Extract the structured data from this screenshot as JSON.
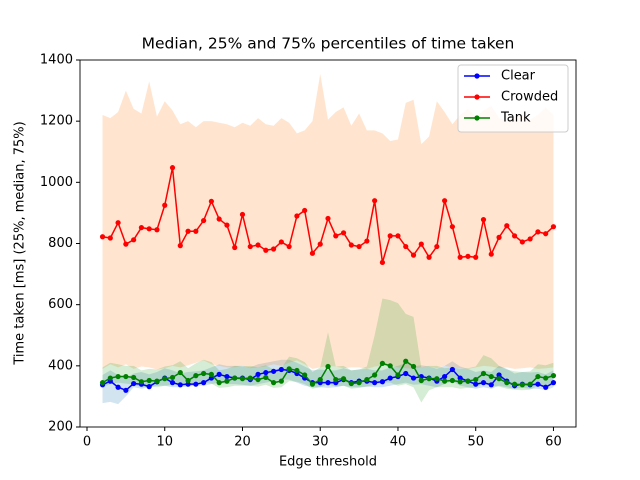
{
  "chart_data": {
    "type": "line",
    "title": "Median, 25% and 75% percentiles of time taken",
    "x_label": "Edge threshold",
    "y_label": "Time taken [ms] (25%, median, 75%)",
    "x": [
      2,
      3,
      4,
      5,
      6,
      7,
      8,
      9,
      10,
      11,
      12,
      13,
      14,
      15,
      16,
      17,
      18,
      19,
      20,
      21,
      22,
      23,
      24,
      25,
      26,
      27,
      28,
      29,
      30,
      31,
      32,
      33,
      34,
      35,
      36,
      37,
      38,
      39,
      40,
      41,
      42,
      43,
      44,
      45,
      46,
      47,
      48,
      49,
      50,
      51,
      52,
      53,
      54,
      55,
      56,
      57,
      58,
      59,
      60
    ],
    "xlim": [
      -0.9,
      62.9
    ],
    "xticks": [
      0,
      10,
      20,
      30,
      40,
      50,
      60
    ],
    "ylim": [
      200,
      1400
    ],
    "yticks": [
      200,
      400,
      600,
      800,
      1000,
      1200,
      1400
    ],
    "legend": "upper right",
    "series": [
      {
        "name": "Clear",
        "color": "#0000ff",
        "band_color": "rgba(31,119,180,0.2)",
        "values": [
          338,
          350,
          330,
          320,
          342,
          340,
          332,
          348,
          360,
          345,
          338,
          340,
          340,
          345,
          360,
          372,
          365,
          360,
          360,
          355,
          372,
          378,
          382,
          388,
          385,
          375,
          360,
          345,
          345,
          345,
          345,
          355,
          345,
          350,
          350,
          345,
          348,
          360,
          365,
          375,
          360,
          365,
          360,
          350,
          365,
          388,
          360,
          350,
          340,
          345,
          338,
          370,
          350,
          335,
          340,
          338,
          340,
          330,
          345
        ],
        "lower": [
          278,
          282,
          275,
          300,
          330,
          325,
          330,
          335,
          335,
          330,
          330,
          332,
          335,
          335,
          340,
          345,
          340,
          340,
          338,
          335,
          340,
          345,
          350,
          355,
          355,
          345,
          335,
          330,
          330,
          328,
          330,
          335,
          330,
          330,
          332,
          330,
          330,
          335,
          340,
          345,
          338,
          340,
          335,
          330,
          340,
          350,
          335,
          330,
          325,
          330,
          325,
          335,
          330,
          325,
          328,
          325,
          325,
          320,
          330
        ],
        "upper": [
          370,
          385,
          370,
          360,
          375,
          380,
          372,
          380,
          392,
          385,
          375,
          380,
          382,
          385,
          395,
          405,
          400,
          400,
          400,
          395,
          405,
          410,
          415,
          420,
          420,
          410,
          398,
          385,
          388,
          385,
          385,
          392,
          385,
          388,
          390,
          385,
          385,
          395,
          400,
          410,
          398,
          402,
          398,
          390,
          400,
          415,
          398,
          390,
          380,
          385,
          380,
          400,
          390,
          375,
          380,
          378,
          380,
          372,
          385
        ]
      },
      {
        "name": "Crowded",
        "color": "#ff0000",
        "band_color": "rgba(255,127,14,0.2)",
        "values": [
          822,
          818,
          868,
          798,
          812,
          852,
          848,
          845,
          925,
          1048,
          793,
          840,
          840,
          875,
          938,
          880,
          860,
          787,
          895,
          790,
          795,
          778,
          782,
          805,
          790,
          890,
          908,
          768,
          798,
          882,
          825,
          835,
          795,
          790,
          808,
          940,
          738,
          825,
          825,
          790,
          762,
          798,
          755,
          790,
          940,
          855,
          755,
          758,
          755,
          878,
          765,
          820,
          858,
          825,
          805,
          815,
          838,
          832,
          855
        ],
        "lower": [
          390,
          405,
          395,
          405,
          390,
          398,
          395,
          388,
          392,
          400,
          395,
          402,
          410,
          418,
          405,
          400,
          395,
          395,
          400,
          392,
          395,
          398,
          405,
          400,
          410,
          418,
          405,
          390,
          395,
          400,
          398,
          392,
          395,
          395,
          390,
          398,
          400,
          402,
          395,
          392,
          390,
          395,
          398,
          392,
          400,
          395,
          392,
          390,
          395,
          400,
          398,
          392,
          395,
          390,
          392,
          395,
          390,
          392,
          395
        ],
        "upper": [
          1220,
          1210,
          1230,
          1300,
          1240,
          1225,
          1330,
          1215,
          1265,
          1235,
          1190,
          1200,
          1180,
          1200,
          1200,
          1195,
          1190,
          1180,
          1195,
          1185,
          1210,
          1190,
          1185,
          1210,
          1195,
          1160,
          1170,
          1200,
          1355,
          1205,
          1230,
          1245,
          1185,
          1225,
          1170,
          1170,
          1160,
          1135,
          1140,
          1260,
          1270,
          1125,
          1150,
          1265,
          1230,
          1190,
          1220,
          1240,
          1215,
          1235,
          1250,
          1210,
          1200,
          1215,
          1220,
          1205,
          1220,
          1245,
          1220
        ]
      },
      {
        "name": "Tank",
        "color": "#008000",
        "band_color": "rgba(44,160,44,0.2)",
        "values": [
          345,
          360,
          365,
          365,
          362,
          348,
          352,
          350,
          358,
          362,
          378,
          352,
          368,
          375,
          372,
          345,
          350,
          360,
          358,
          360,
          355,
          362,
          345,
          350,
          390,
          385,
          370,
          340,
          355,
          398,
          355,
          358,
          342,
          345,
          355,
          370,
          408,
          400,
          370,
          415,
          398,
          352,
          358,
          358,
          350,
          352,
          348,
          350,
          355,
          375,
          365,
          358,
          345,
          340,
          338,
          340,
          365,
          360,
          368
        ],
        "lower": [
          330,
          340,
          345,
          342,
          338,
          330,
          332,
          330,
          335,
          338,
          345,
          332,
          340,
          345,
          342,
          328,
          330,
          335,
          335,
          335,
          332,
          338,
          328,
          330,
          350,
          348,
          340,
          325,
          330,
          340,
          332,
          335,
          325,
          328,
          332,
          338,
          345,
          345,
          335,
          340,
          330,
          280,
          320,
          330,
          330,
          330,
          325,
          328,
          330,
          340,
          335,
          332,
          325,
          322,
          320,
          322,
          335,
          332,
          338
        ],
        "upper": [
          395,
          410,
          405,
          400,
          400,
          385,
          390,
          388,
          398,
          402,
          415,
          392,
          408,
          420,
          412,
          385,
          390,
          400,
          398,
          400,
          395,
          402,
          388,
          392,
          430,
          425,
          412,
          380,
          395,
          510,
          398,
          400,
          385,
          388,
          398,
          500,
          620,
          615,
          605,
          570,
          560,
          395,
          400,
          400,
          392,
          395,
          390,
          392,
          398,
          435,
          425,
          400,
          388,
          382,
          380,
          382,
          405,
          402,
          410
        ]
      }
    ]
  }
}
